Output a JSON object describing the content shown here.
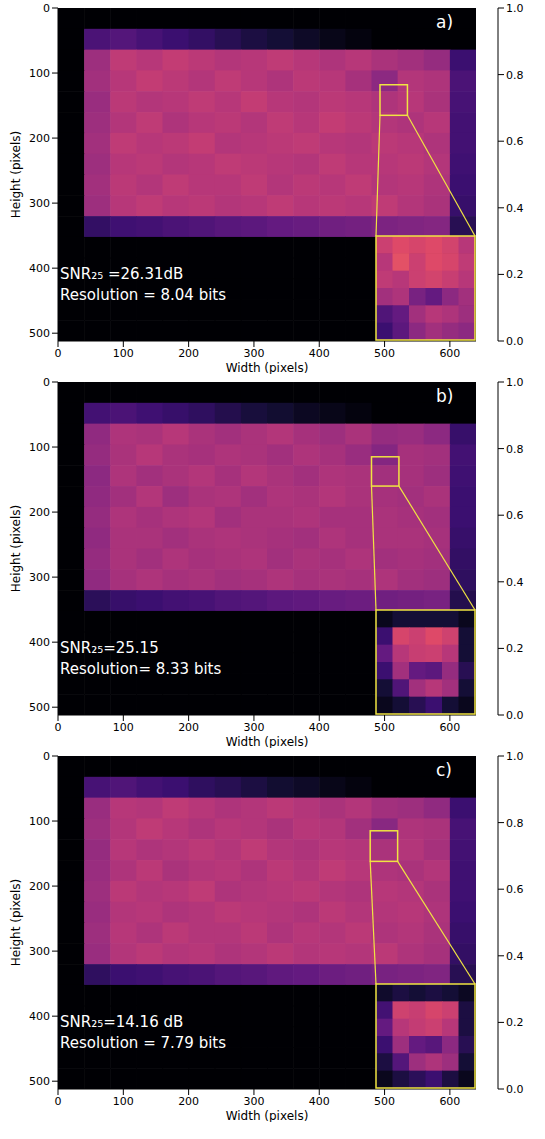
{
  "chart_data": [
    {
      "type": "heatmap",
      "panel_label": "a)",
      "x_label": "Width (pixels)",
      "y_label": "Height (pixels)",
      "xlim": [
        0,
        640
      ],
      "xticks": [
        0,
        100,
        200,
        300,
        400,
        500,
        600
      ],
      "ylim": [
        0,
        512
      ],
      "yticks": [
        0,
        100,
        200,
        300,
        400,
        500
      ],
      "x_bins": [
        0,
        40,
        80,
        120,
        160,
        200,
        240,
        280,
        320,
        360,
        400,
        440,
        480,
        520,
        560,
        600,
        640
      ],
      "y_bins": [
        0,
        32,
        64,
        96,
        128,
        160,
        192,
        224,
        256,
        288,
        320,
        352,
        384,
        416,
        448,
        480,
        512
      ],
      "cells": [
        [
          0,
          0,
          0,
          0,
          0,
          0,
          0,
          0,
          0,
          0,
          0,
          0,
          0,
          0,
          0,
          0
        ],
        [
          0,
          0.24,
          0.26,
          0.23,
          0.2,
          0.18,
          0.15,
          0.12,
          0.1,
          0.07,
          0.04,
          0.02,
          0,
          0,
          0,
          0
        ],
        [
          0,
          0.44,
          0.52,
          0.5,
          0.53,
          0.51,
          0.49,
          0.5,
          0.52,
          0.5,
          0.48,
          0.5,
          0.47,
          0.45,
          0.42,
          0.2
        ],
        [
          0,
          0.45,
          0.5,
          0.53,
          0.51,
          0.49,
          0.52,
          0.5,
          0.48,
          0.51,
          0.5,
          0.46,
          0.4,
          0.49,
          0.48,
          0.24
        ],
        [
          0,
          0.43,
          0.51,
          0.49,
          0.5,
          0.52,
          0.5,
          0.53,
          0.5,
          0.49,
          0.51,
          0.5,
          0.48,
          0.5,
          0.47,
          0.23
        ],
        [
          0,
          0.44,
          0.49,
          0.52,
          0.48,
          0.5,
          0.51,
          0.49,
          0.52,
          0.5,
          0.53,
          0.51,
          0.49,
          0.48,
          0.5,
          0.22
        ],
        [
          0,
          0.45,
          0.52,
          0.5,
          0.51,
          0.53,
          0.49,
          0.5,
          0.51,
          0.52,
          0.5,
          0.49,
          0.51,
          0.5,
          0.48,
          0.22
        ],
        [
          0,
          0.44,
          0.5,
          0.51,
          0.49,
          0.5,
          0.52,
          0.51,
          0.5,
          0.49,
          0.52,
          0.5,
          0.5,
          0.51,
          0.49,
          0.21
        ],
        [
          0,
          0.45,
          0.51,
          0.49,
          0.52,
          0.5,
          0.5,
          0.52,
          0.49,
          0.51,
          0.5,
          0.52,
          0.49,
          0.5,
          0.48,
          0.2
        ],
        [
          0,
          0.44,
          0.5,
          0.52,
          0.5,
          0.51,
          0.49,
          0.5,
          0.52,
          0.5,
          0.51,
          0.5,
          0.52,
          0.49,
          0.47,
          0.19
        ],
        [
          0,
          0.18,
          0.21,
          0.22,
          0.24,
          0.25,
          0.27,
          0.28,
          0.3,
          0.31,
          0.33,
          0.34,
          0.36,
          0.37,
          0.38,
          0.15
        ],
        [
          0,
          0,
          0,
          0,
          0,
          0,
          0,
          0,
          0,
          0,
          0,
          0,
          0,
          0,
          0,
          0
        ],
        [
          0,
          0,
          0,
          0,
          0,
          0,
          0,
          0,
          0,
          0,
          0,
          0,
          0,
          0,
          0,
          0
        ],
        [
          0,
          0,
          0,
          0,
          0,
          0,
          0,
          0,
          0,
          0,
          0,
          0,
          0,
          0,
          0,
          0
        ],
        [
          0,
          0,
          0,
          0,
          0,
          0,
          0,
          0,
          0,
          0,
          0,
          0,
          0,
          0,
          0,
          0
        ],
        [
          0,
          0,
          0,
          0,
          0,
          0,
          0,
          0,
          0,
          0,
          0,
          0,
          0,
          0,
          0,
          0
        ]
      ],
      "colorbar": {
        "range": [
          0,
          1
        ],
        "ticks": [
          {
            "value": 0,
            "label": "0.0"
          },
          {
            "value": 0.2,
            "label": "0.2"
          },
          {
            "value": 0.4,
            "label": "0.4"
          },
          {
            "value": 0.6,
            "label": "0.6"
          },
          {
            "value": 0.8,
            "label": "0.8"
          },
          {
            "value": 1,
            "label": "1.0"
          }
        ]
      },
      "annotations": [
        "SNR₂₅ =26.31dB",
        "Resolution = 8.04 bits"
      ],
      "zoom_region": {
        "x": [
          493,
          535
        ],
        "y": [
          118,
          165
        ]
      },
      "inset_cells": [
        [
          0.55,
          0.6,
          0.58,
          0.6,
          0.57,
          0.5
        ],
        [
          0.5,
          0.62,
          0.55,
          0.6,
          0.58,
          0.52
        ],
        [
          0.52,
          0.5,
          0.55,
          0.57,
          0.54,
          0.5
        ],
        [
          0.45,
          0.48,
          0.35,
          0.3,
          0.4,
          0.45
        ],
        [
          0.25,
          0.3,
          0.45,
          0.5,
          0.48,
          0.44
        ],
        [
          0.2,
          0.28,
          0.4,
          0.45,
          0.42,
          0.4
        ]
      ]
    },
    {
      "type": "heatmap",
      "panel_label": "b)",
      "x_label": "Width (pixels)",
      "y_label": "Height (pixels)",
      "xlim": [
        0,
        640
      ],
      "xticks": [
        0,
        100,
        200,
        300,
        400,
        500,
        600
      ],
      "ylim": [
        0,
        512
      ],
      "yticks": [
        0,
        100,
        200,
        300,
        400,
        500
      ],
      "x_bins": [
        0,
        40,
        80,
        120,
        160,
        200,
        240,
        280,
        320,
        360,
        400,
        440,
        480,
        520,
        560,
        600,
        640
      ],
      "y_bins": [
        0,
        32,
        64,
        96,
        128,
        160,
        192,
        224,
        256,
        288,
        320,
        352,
        384,
        416,
        448,
        480,
        512
      ],
      "cells": [
        [
          0,
          0,
          0,
          0,
          0,
          0,
          0,
          0,
          0,
          0,
          0,
          0,
          0,
          0,
          0,
          0
        ],
        [
          0,
          0.22,
          0.24,
          0.21,
          0.19,
          0.17,
          0.14,
          0.11,
          0.09,
          0.06,
          0.04,
          0.02,
          0,
          0,
          0,
          0
        ],
        [
          0,
          0.41,
          0.48,
          0.47,
          0.5,
          0.47,
          0.45,
          0.47,
          0.49,
          0.46,
          0.44,
          0.47,
          0.42,
          0.43,
          0.4,
          0.19
        ],
        [
          0,
          0.42,
          0.47,
          0.5,
          0.47,
          0.46,
          0.48,
          0.47,
          0.45,
          0.48,
          0.46,
          0.43,
          0.38,
          0.46,
          0.45,
          0.22
        ],
        [
          0,
          0.4,
          0.48,
          0.45,
          0.47,
          0.49,
          0.46,
          0.49,
          0.47,
          0.45,
          0.48,
          0.47,
          0.45,
          0.46,
          0.44,
          0.21
        ],
        [
          0,
          0.41,
          0.45,
          0.49,
          0.44,
          0.47,
          0.48,
          0.45,
          0.48,
          0.47,
          0.49,
          0.47,
          0.46,
          0.45,
          0.47,
          0.2
        ],
        [
          0,
          0.42,
          0.48,
          0.46,
          0.48,
          0.49,
          0.45,
          0.47,
          0.47,
          0.48,
          0.46,
          0.46,
          0.47,
          0.46,
          0.45,
          0.2
        ],
        [
          0,
          0.41,
          0.47,
          0.47,
          0.45,
          0.47,
          0.48,
          0.47,
          0.46,
          0.45,
          0.48,
          0.46,
          0.47,
          0.47,
          0.46,
          0.19
        ],
        [
          0,
          0.42,
          0.47,
          0.45,
          0.48,
          0.46,
          0.47,
          0.48,
          0.45,
          0.47,
          0.46,
          0.48,
          0.45,
          0.46,
          0.45,
          0.18
        ],
        [
          0,
          0.41,
          0.46,
          0.48,
          0.46,
          0.47,
          0.45,
          0.46,
          0.48,
          0.46,
          0.47,
          0.46,
          0.48,
          0.45,
          0.44,
          0.17
        ],
        [
          0,
          0.16,
          0.19,
          0.2,
          0.22,
          0.23,
          0.25,
          0.26,
          0.28,
          0.29,
          0.31,
          0.32,
          0.33,
          0.34,
          0.35,
          0.14
        ],
        [
          0,
          0,
          0,
          0,
          0,
          0,
          0,
          0,
          0,
          0,
          0,
          0,
          0,
          0,
          0,
          0
        ],
        [
          0,
          0,
          0,
          0,
          0,
          0,
          0,
          0,
          0,
          0,
          0,
          0,
          0,
          0,
          0,
          0
        ],
        [
          0,
          0,
          0,
          0,
          0,
          0,
          0,
          0,
          0,
          0,
          0,
          0,
          0,
          0,
          0,
          0
        ],
        [
          0,
          0,
          0,
          0,
          0,
          0,
          0,
          0,
          0,
          0,
          0,
          0,
          0,
          0,
          0,
          0
        ],
        [
          0,
          0,
          0,
          0,
          0,
          0,
          0,
          0,
          0,
          0,
          0,
          0,
          0,
          0,
          0,
          0
        ]
      ],
      "colorbar": {
        "range": [
          0,
          1
        ],
        "ticks": [
          {
            "value": 0,
            "label": "0.0"
          },
          {
            "value": 0.2,
            "label": "0.2"
          },
          {
            "value": 0.4,
            "label": "0.4"
          },
          {
            "value": 0.6,
            "label": "0.6"
          },
          {
            "value": 0.8,
            "label": "0.8"
          },
          {
            "value": 1,
            "label": "1.0"
          }
        ]
      },
      "annotations": [
        "SNR₂₅=25.15",
        "Resolution= 8.33 bits"
      ],
      "zoom_region": {
        "x": [
          480,
          522
        ],
        "y": [
          115,
          160
        ]
      },
      "inset_cells": [
        [
          0.05,
          0.1,
          0.1,
          0.1,
          0.1,
          0.05
        ],
        [
          0.2,
          0.58,
          0.55,
          0.6,
          0.56,
          0.1
        ],
        [
          0.3,
          0.5,
          0.54,
          0.55,
          0.5,
          0.1
        ],
        [
          0.2,
          0.45,
          0.3,
          0.28,
          0.42,
          0.15
        ],
        [
          0.1,
          0.25,
          0.45,
          0.5,
          0.45,
          0.1
        ],
        [
          0.05,
          0.1,
          0.15,
          0.2,
          0.1,
          0.05
        ]
      ]
    },
    {
      "type": "heatmap",
      "panel_label": "c)",
      "x_label": "Width (pixels)",
      "y_label": "Height (pixels)",
      "xlim": [
        0,
        640
      ],
      "xticks": [
        0,
        100,
        200,
        300,
        400,
        500,
        600
      ],
      "ylim": [
        0,
        512
      ],
      "yticks": [
        0,
        100,
        200,
        300,
        400,
        500
      ],
      "x_bins": [
        0,
        40,
        80,
        120,
        160,
        200,
        240,
        280,
        320,
        360,
        400,
        440,
        480,
        520,
        560,
        600,
        640
      ],
      "y_bins": [
        0,
        32,
        64,
        96,
        128,
        160,
        192,
        224,
        256,
        288,
        320,
        352,
        384,
        416,
        448,
        480,
        512
      ],
      "cells": [
        [
          0,
          0,
          0,
          0,
          0,
          0,
          0,
          0,
          0,
          0,
          0,
          0,
          0,
          0,
          0,
          0
        ],
        [
          0,
          0.23,
          0.25,
          0.22,
          0.2,
          0.17,
          0.15,
          0.12,
          0.09,
          0.07,
          0.04,
          0.02,
          0,
          0,
          0,
          0
        ],
        [
          0,
          0.43,
          0.5,
          0.49,
          0.52,
          0.5,
          0.48,
          0.49,
          0.51,
          0.49,
          0.47,
          0.49,
          0.45,
          0.44,
          0.41,
          0.2
        ],
        [
          0,
          0.44,
          0.49,
          0.52,
          0.5,
          0.48,
          0.5,
          0.49,
          0.47,
          0.5,
          0.49,
          0.45,
          0.39,
          0.48,
          0.47,
          0.23
        ],
        [
          0,
          0.42,
          0.5,
          0.48,
          0.49,
          0.51,
          0.49,
          0.52,
          0.49,
          0.48,
          0.5,
          0.49,
          0.47,
          0.49,
          0.46,
          0.22
        ],
        [
          0,
          0.43,
          0.48,
          0.51,
          0.47,
          0.49,
          0.5,
          0.48,
          0.51,
          0.49,
          0.52,
          0.5,
          0.48,
          0.47,
          0.49,
          0.21
        ],
        [
          0,
          0.44,
          0.51,
          0.49,
          0.5,
          0.52,
          0.48,
          0.49,
          0.5,
          0.51,
          0.49,
          0.48,
          0.5,
          0.49,
          0.47,
          0.21
        ],
        [
          0,
          0.43,
          0.49,
          0.5,
          0.48,
          0.49,
          0.51,
          0.5,
          0.49,
          0.48,
          0.51,
          0.49,
          0.49,
          0.5,
          0.48,
          0.2
        ],
        [
          0,
          0.44,
          0.5,
          0.48,
          0.51,
          0.49,
          0.49,
          0.51,
          0.48,
          0.5,
          0.49,
          0.51,
          0.48,
          0.49,
          0.47,
          0.19
        ],
        [
          0,
          0.43,
          0.49,
          0.51,
          0.49,
          0.5,
          0.48,
          0.49,
          0.51,
          0.49,
          0.5,
          0.49,
          0.51,
          0.48,
          0.46,
          0.18
        ],
        [
          0,
          0.17,
          0.2,
          0.21,
          0.23,
          0.24,
          0.26,
          0.27,
          0.29,
          0.3,
          0.32,
          0.33,
          0.35,
          0.36,
          0.37,
          0.15
        ],
        [
          0,
          0,
          0,
          0,
          0,
          0,
          0,
          0,
          0,
          0,
          0,
          0,
          0,
          0,
          0,
          0
        ],
        [
          0,
          0,
          0,
          0,
          0,
          0,
          0,
          0,
          0,
          0,
          0,
          0,
          0,
          0,
          0,
          0
        ],
        [
          0,
          0,
          0,
          0,
          0,
          0,
          0,
          0,
          0,
          0,
          0,
          0,
          0,
          0,
          0,
          0
        ],
        [
          0,
          0,
          0,
          0,
          0,
          0,
          0,
          0,
          0,
          0,
          0,
          0,
          0,
          0,
          0,
          0
        ],
        [
          0,
          0,
          0,
          0,
          0,
          0,
          0,
          0,
          0,
          0,
          0,
          0,
          0,
          0,
          0,
          0
        ]
      ],
      "colorbar": {
        "range": [
          0,
          1
        ],
        "ticks": [
          {
            "value": 0,
            "label": "0.0"
          },
          {
            "value": 0.2,
            "label": "0.2"
          },
          {
            "value": 0.4,
            "label": "0.4"
          },
          {
            "value": 0.6,
            "label": "0.6"
          },
          {
            "value": 0.8,
            "label": "0.8"
          },
          {
            "value": 1,
            "label": "1.0"
          }
        ]
      },
      "annotations": [
        "SNR₂₅=14.16 dB",
        "Resolution = 7.79 bits"
      ],
      "zoom_region": {
        "x": [
          478,
          520
        ],
        "y": [
          115,
          162
        ]
      },
      "inset_cells": [
        [
          0.08,
          0.12,
          0.1,
          0.12,
          0.1,
          0.06
        ],
        [
          0.22,
          0.56,
          0.54,
          0.58,
          0.55,
          0.12
        ],
        [
          0.3,
          0.5,
          0.53,
          0.55,
          0.5,
          0.12
        ],
        [
          0.2,
          0.44,
          0.3,
          0.27,
          0.4,
          0.15
        ],
        [
          0.12,
          0.26,
          0.44,
          0.48,
          0.44,
          0.1
        ],
        [
          0.05,
          0.12,
          0.16,
          0.2,
          0.12,
          0.05
        ]
      ]
    }
  ]
}
